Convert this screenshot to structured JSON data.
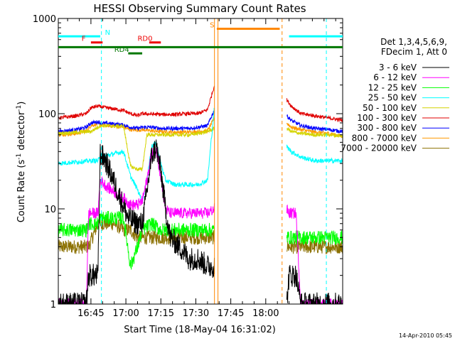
{
  "chart_data": {
    "type": "line",
    "title": "HESSI Observing Summary Count Rates",
    "xlabel": "Start Time (18-May-04 16:31:02)",
    "ylabel_main": "Count Rate (s",
    "ylabel_sup1": "-1",
    "ylabel_mid": " detector",
    "ylabel_sup2": "-1",
    "ylabel_end": ")",
    "y_scale": "log",
    "ylim": [
      1,
      1000
    ],
    "xlim_min": [
      0,
      122
    ],
    "x_ticks": [
      {
        "min": 14,
        "label": "16:45"
      },
      {
        "min": 29,
        "label": "17:00"
      },
      {
        "min": 44,
        "label": "17:15"
      },
      {
        "min": 59,
        "label": "17:30"
      },
      {
        "min": 74,
        "label": "17:45"
      },
      {
        "min": 89,
        "label": "18:00"
      }
    ],
    "y_ticks": [
      {
        "value": 1,
        "label": "1"
      },
      {
        "value": 10,
        "label": "10"
      },
      {
        "value": 100,
        "label": "100"
      },
      {
        "value": 1000,
        "label": "1000"
      }
    ],
    "legend": {
      "placement": "right",
      "header1": "Det 1,3,4,5,6,9,",
      "header2": "FDecim 1, Att 0",
      "entries": [
        {
          "label": "3 - 6 keV",
          "color": "#000000"
        },
        {
          "label": "6 - 12 keV",
          "color": "#ff00ff"
        },
        {
          "label": "12 - 25 keV",
          "color": "#00ff00"
        },
        {
          "label": "25 - 50 keV",
          "color": "#00ffff"
        },
        {
          "label": "50 - 100 keV",
          "color": "#d4d400"
        },
        {
          "label": "100 - 300 keV",
          "color": "#e00000"
        },
        {
          "label": "300 - 800 keV",
          "color": "#0000ff"
        },
        {
          "label": "800 - 7000 keV",
          "color": "#ff9900"
        },
        {
          "label": "7000 - 20000 keV",
          "color": "#8b7000"
        }
      ]
    },
    "bars": [
      {
        "label": "N",
        "color": "#00ffff",
        "x0": -1,
        "x1": 18,
        "y": 650,
        "label_at": 20
      },
      {
        "label": "",
        "color": "#00ffff",
        "x0": 99,
        "x1": 122,
        "y": 650
      },
      {
        "label": "F",
        "color": "#ee0000",
        "x0": 14,
        "x1": 19,
        "y": 560,
        "label_at": 10
      },
      {
        "label": "RD0",
        "color": "#ee0000",
        "x0": 39,
        "x1": 44,
        "y": 560,
        "label_at": 34
      },
      {
        "label": "RD4",
        "color": "#007700",
        "x0": 30,
        "x1": 36,
        "y": 430,
        "label_at": 24
      },
      {
        "label": "S",
        "color": "#ff8800",
        "x0": 68,
        "x1": 95,
        "y": 780,
        "label_at": 65
      },
      {
        "label": "",
        "color": "#007700",
        "x0": 0,
        "x1": 122,
        "y": 500
      }
    ],
    "verticals": [
      {
        "x": 18.5,
        "color": "#00ffff",
        "dash": true
      },
      {
        "x": 115,
        "color": "#00ffff",
        "dash": true
      },
      {
        "x": 67,
        "color": "#ff8800",
        "dash": false
      },
      {
        "x": 68.5,
        "color": "#ff8800",
        "dash": false
      },
      {
        "x": 96,
        "color": "#ff8800",
        "dash": true
      }
    ],
    "gaps": [
      [
        67,
        98
      ]
    ],
    "series": [
      {
        "name": "3 - 6 keV",
        "color": "#000000",
        "noise": 0.25,
        "points": [
          [
            0,
            1
          ],
          [
            12,
            1
          ],
          [
            13,
            2
          ],
          [
            17,
            2
          ],
          [
            18,
            38
          ],
          [
            20,
            33
          ],
          [
            23,
            22
          ],
          [
            26,
            14
          ],
          [
            30,
            8
          ],
          [
            34,
            7
          ],
          [
            36,
            7
          ],
          [
            38,
            15
          ],
          [
            40,
            35
          ],
          [
            42,
            45
          ],
          [
            44,
            25
          ],
          [
            46,
            10
          ],
          [
            48,
            5
          ],
          [
            52,
            4
          ],
          [
            56,
            3
          ],
          [
            60,
            3
          ],
          [
            64,
            2.5
          ],
          [
            66,
            2.5
          ],
          [
            67,
            2.5
          ],
          [
            98,
            1
          ],
          [
            99,
            2
          ],
          [
            102,
            2
          ],
          [
            104,
            1
          ],
          [
            122,
            1
          ]
        ]
      },
      {
        "name": "6 - 12 keV",
        "color": "#ff00ff",
        "noise": 0.12,
        "points": [
          [
            0,
            1
          ],
          [
            12,
            1
          ],
          [
            13,
            9
          ],
          [
            17,
            9
          ],
          [
            18,
            20
          ],
          [
            21,
            17
          ],
          [
            24,
            15
          ],
          [
            28,
            13
          ],
          [
            31,
            11
          ],
          [
            34,
            11
          ],
          [
            36,
            12
          ],
          [
            38,
            20
          ],
          [
            40,
            38
          ],
          [
            42,
            42
          ],
          [
            44,
            22
          ],
          [
            46,
            10
          ],
          [
            48,
            9
          ],
          [
            52,
            9
          ],
          [
            58,
            9
          ],
          [
            64,
            9
          ],
          [
            67,
            10
          ],
          [
            98,
            10
          ],
          [
            99,
            9
          ],
          [
            102,
            9
          ],
          [
            104,
            1
          ],
          [
            110,
            1
          ],
          [
            116,
            1
          ],
          [
            122,
            1
          ]
        ]
      },
      {
        "name": "12 - 25 keV",
        "color": "#00ff00",
        "noise": 0.15,
        "points": [
          [
            0,
            6
          ],
          [
            12,
            6
          ],
          [
            13,
            7
          ],
          [
            17,
            7
          ],
          [
            18,
            8
          ],
          [
            24,
            8
          ],
          [
            28,
            8
          ],
          [
            31,
            2.5
          ],
          [
            34,
            4
          ],
          [
            36,
            6
          ],
          [
            40,
            7
          ],
          [
            44,
            6
          ],
          [
            50,
            6
          ],
          [
            56,
            6
          ],
          [
            60,
            6
          ],
          [
            64,
            6
          ],
          [
            67,
            6
          ],
          [
            98,
            5
          ],
          [
            102,
            5
          ],
          [
            110,
            5
          ],
          [
            116,
            5
          ],
          [
            122,
            5
          ]
        ]
      },
      {
        "name": "25 - 50 keV",
        "color": "#00ffff",
        "noise": 0.05,
        "points": [
          [
            0,
            30
          ],
          [
            14,
            32
          ],
          [
            17,
            32
          ],
          [
            18,
            35
          ],
          [
            24,
            38
          ],
          [
            28,
            40
          ],
          [
            31,
            22
          ],
          [
            34,
            16
          ],
          [
            36,
            12
          ],
          [
            38,
            20
          ],
          [
            40,
            45
          ],
          [
            42,
            50
          ],
          [
            44,
            30
          ],
          [
            46,
            20
          ],
          [
            50,
            18
          ],
          [
            56,
            18
          ],
          [
            60,
            18
          ],
          [
            64,
            20
          ],
          [
            67,
            120
          ],
          [
            98,
            45
          ],
          [
            100,
            40
          ],
          [
            104,
            35
          ],
          [
            110,
            32
          ],
          [
            116,
            32
          ],
          [
            122,
            32
          ]
        ]
      },
      {
        "name": "50 - 100 keV",
        "color": "#d4d400",
        "noise": 0.04,
        "points": [
          [
            0,
            62
          ],
          [
            14,
            65
          ],
          [
            17,
            72
          ],
          [
            18,
            75
          ],
          [
            24,
            74
          ],
          [
            28,
            74
          ],
          [
            31,
            28
          ],
          [
            34,
            26
          ],
          [
            36,
            26
          ],
          [
            38,
            60
          ],
          [
            44,
            60
          ],
          [
            50,
            60
          ],
          [
            56,
            60
          ],
          [
            60,
            62
          ],
          [
            64,
            65
          ],
          [
            67,
            70
          ],
          [
            98,
            70
          ],
          [
            100,
            65
          ],
          [
            104,
            62
          ],
          [
            110,
            60
          ],
          [
            116,
            60
          ],
          [
            122,
            58
          ]
        ]
      },
      {
        "name": "100 - 300 keV",
        "color": "#e00000",
        "noise": 0.04,
        "points": [
          [
            0,
            90
          ],
          [
            8,
            95
          ],
          [
            12,
            100
          ],
          [
            14,
            115
          ],
          [
            17,
            120
          ],
          [
            18,
            118
          ],
          [
            24,
            112
          ],
          [
            28,
            108
          ],
          [
            31,
            100
          ],
          [
            34,
            95
          ],
          [
            36,
            100
          ],
          [
            44,
            98
          ],
          [
            50,
            98
          ],
          [
            56,
            100
          ],
          [
            60,
            100
          ],
          [
            64,
            110
          ],
          [
            67,
            200
          ],
          [
            98,
            140
          ],
          [
            100,
            120
          ],
          [
            104,
            100
          ],
          [
            110,
            95
          ],
          [
            116,
            90
          ],
          [
            122,
            85
          ]
        ]
      },
      {
        "name": "300 - 800 keV",
        "color": "#0000ff",
        "noise": 0.04,
        "points": [
          [
            0,
            65
          ],
          [
            8,
            68
          ],
          [
            12,
            72
          ],
          [
            14,
            80
          ],
          [
            17,
            82
          ],
          [
            18,
            80
          ],
          [
            24,
            78
          ],
          [
            28,
            76
          ],
          [
            31,
            72
          ],
          [
            34,
            70
          ],
          [
            36,
            72
          ],
          [
            40,
            72
          ],
          [
            44,
            70
          ],
          [
            50,
            70
          ],
          [
            56,
            70
          ],
          [
            60,
            72
          ],
          [
            64,
            75
          ],
          [
            67,
            110
          ],
          [
            98,
            95
          ],
          [
            100,
            85
          ],
          [
            104,
            75
          ],
          [
            110,
            70
          ],
          [
            116,
            68
          ],
          [
            122,
            65
          ]
        ]
      },
      {
        "name": "800 - 7000 keV",
        "color": "#ff9900",
        "noise": 0.04,
        "points": [
          [
            0,
            60
          ],
          [
            8,
            62
          ],
          [
            12,
            66
          ],
          [
            14,
            75
          ],
          [
            17,
            78
          ],
          [
            18,
            76
          ],
          [
            24,
            74
          ],
          [
            28,
            72
          ],
          [
            31,
            68
          ],
          [
            34,
            67
          ],
          [
            36,
            68
          ],
          [
            40,
            66
          ],
          [
            44,
            65
          ],
          [
            50,
            64
          ],
          [
            56,
            64
          ],
          [
            60,
            65
          ],
          [
            64,
            66
          ],
          [
            67,
            90
          ],
          [
            98,
            80
          ],
          [
            100,
            72
          ],
          [
            104,
            68
          ],
          [
            110,
            64
          ],
          [
            116,
            62
          ],
          [
            122,
            58
          ]
        ]
      },
      {
        "name": "7000 - 20000 keV",
        "color": "#8b7000",
        "noise": 0.15,
        "points": [
          [
            0,
            4
          ],
          [
            12,
            4
          ],
          [
            13,
            4
          ],
          [
            17,
            7
          ],
          [
            18,
            7
          ],
          [
            24,
            7
          ],
          [
            28,
            6
          ],
          [
            31,
            6
          ],
          [
            34,
            5
          ],
          [
            36,
            5
          ],
          [
            40,
            5
          ],
          [
            44,
            5
          ],
          [
            50,
            5
          ],
          [
            56,
            5
          ],
          [
            60,
            5
          ],
          [
            64,
            5
          ],
          [
            67,
            5
          ],
          [
            98,
            4
          ],
          [
            104,
            4
          ],
          [
            110,
            4
          ],
          [
            116,
            4
          ],
          [
            122,
            4
          ]
        ]
      }
    ]
  },
  "footer": {
    "timestamp": "14-Apr-2010 05:45"
  }
}
